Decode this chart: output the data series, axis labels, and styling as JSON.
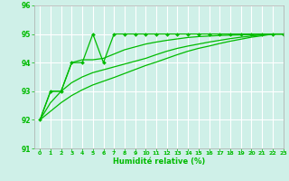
{
  "xlabel": "Humidité relative (%)",
  "background_color": "#cff0e8",
  "grid_color": "#ffffff",
  "line_color": "#00bb00",
  "xlim": [
    -0.5,
    23
  ],
  "ylim": [
    91,
    96
  ],
  "yticks": [
    91,
    92,
    93,
    94,
    95,
    96
  ],
  "xticks": [
    0,
    1,
    2,
    3,
    4,
    5,
    6,
    7,
    8,
    9,
    10,
    11,
    12,
    13,
    14,
    15,
    16,
    17,
    18,
    19,
    20,
    21,
    22,
    23
  ],
  "series1_x": [
    0,
    1,
    2,
    3,
    4,
    5,
    6,
    7,
    8,
    9,
    10,
    11,
    12,
    13,
    14,
    15,
    16,
    17,
    18,
    19,
    20,
    21,
    22,
    23
  ],
  "series1_y": [
    92.0,
    93.0,
    93.0,
    94.0,
    94.0,
    95.0,
    94.0,
    95.0,
    95.0,
    95.0,
    95.0,
    95.0,
    95.0,
    95.0,
    95.0,
    95.0,
    95.0,
    95.0,
    95.0,
    95.0,
    95.0,
    95.0,
    95.0,
    95.0
  ],
  "series2_x": [
    0,
    1,
    2,
    3,
    4,
    5,
    6,
    7,
    8,
    9,
    10,
    11,
    12,
    13,
    14,
    15,
    16,
    17,
    18,
    19,
    20,
    21,
    22,
    23
  ],
  "series2_y": [
    92.0,
    93.0,
    93.0,
    94.0,
    94.1,
    94.1,
    94.15,
    94.3,
    94.45,
    94.55,
    94.65,
    94.72,
    94.78,
    94.83,
    94.88,
    94.91,
    94.93,
    94.95,
    94.96,
    94.97,
    94.98,
    94.99,
    95.0,
    95.0
  ],
  "series3_x": [
    0,
    1,
    2,
    3,
    4,
    5,
    6,
    7,
    8,
    9,
    10,
    11,
    12,
    13,
    14,
    15,
    16,
    17,
    18,
    19,
    20,
    21,
    22,
    23
  ],
  "series3_y": [
    92.0,
    92.6,
    93.0,
    93.3,
    93.5,
    93.65,
    93.75,
    93.85,
    93.95,
    94.05,
    94.15,
    94.28,
    94.4,
    94.5,
    94.58,
    94.65,
    94.72,
    94.78,
    94.84,
    94.89,
    94.93,
    94.97,
    95.0,
    95.0
  ],
  "series4_x": [
    0,
    1,
    2,
    3,
    4,
    5,
    6,
    7,
    8,
    9,
    10,
    11,
    12,
    13,
    14,
    15,
    16,
    17,
    18,
    19,
    20,
    21,
    22,
    23
  ],
  "series4_y": [
    92.0,
    92.3,
    92.6,
    92.85,
    93.05,
    93.22,
    93.35,
    93.48,
    93.62,
    93.76,
    93.9,
    94.02,
    94.15,
    94.28,
    94.4,
    94.5,
    94.58,
    94.67,
    94.75,
    94.82,
    94.89,
    94.94,
    95.0,
    95.0
  ]
}
